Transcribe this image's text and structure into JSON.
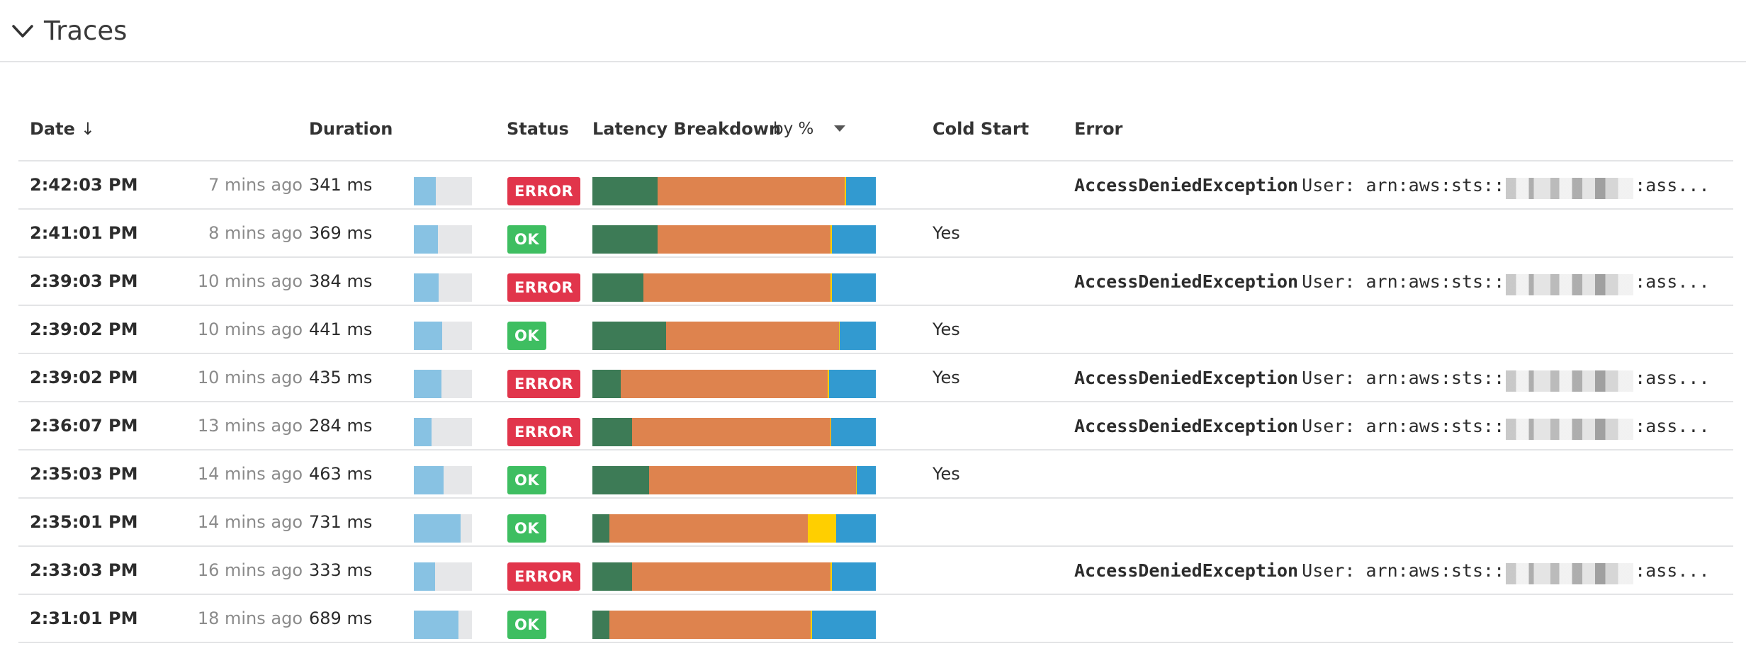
{
  "panel": {
    "title": "Traces"
  },
  "columns": {
    "date": "Date",
    "date_sort": "↓",
    "duration": "Duration",
    "status": "Status",
    "latency": "Latency Breakdown",
    "latency_mode": "by %",
    "cold_start": "Cold Start",
    "error": "Error"
  },
  "colors": {
    "segments": [
      "#3d7b56",
      "#de834e",
      "#ffcf00",
      "#329ad0"
    ],
    "error_badge": "#e1354b",
    "ok_badge": "#3ebe61",
    "duration_fill": "#88c2e3"
  },
  "rows": [
    {
      "time": "2:42:03 PM",
      "ago": "7 mins ago",
      "duration": "341 ms",
      "duration_level": 0.38,
      "status": "ERROR",
      "latency": [
        23,
        66,
        0.5,
        10.5
      ],
      "cold_start": "",
      "error_name": "AccessDeniedException",
      "error_prefix": "User: arn:aws:sts::",
      "error_suffix": ":ass..."
    },
    {
      "time": "2:41:01 PM",
      "ago": "8 mins ago",
      "duration": "369 ms",
      "duration_level": 0.41,
      "status": "OK",
      "latency": [
        23,
        61,
        0.6,
        15.4
      ],
      "cold_start": "Yes",
      "error_name": "",
      "error_prefix": "",
      "error_suffix": ""
    },
    {
      "time": "2:39:03 PM",
      "ago": "10 mins ago",
      "duration": "384 ms",
      "duration_level": 0.43,
      "status": "ERROR",
      "latency": [
        18,
        66,
        0.4,
        15.6
      ],
      "cold_start": "",
      "error_name": "AccessDeniedException",
      "error_prefix": "User: arn:aws:sts::",
      "error_suffix": ":ass..."
    },
    {
      "time": "2:39:02 PM",
      "ago": "10 mins ago",
      "duration": "441 ms",
      "duration_level": 0.49,
      "status": "OK",
      "latency": [
        26,
        61,
        0.3,
        12.7
      ],
      "cold_start": "Yes",
      "error_name": "",
      "error_prefix": "",
      "error_suffix": ""
    },
    {
      "time": "2:39:02 PM",
      "ago": "10 mins ago",
      "duration": "435 ms",
      "duration_level": 0.48,
      "status": "ERROR",
      "latency": [
        10,
        73,
        0.6,
        16.4
      ],
      "cold_start": "Yes",
      "error_name": "AccessDeniedException",
      "error_prefix": "User: arn:aws:sts::",
      "error_suffix": ":ass..."
    },
    {
      "time": "2:36:07 PM",
      "ago": "13 mins ago",
      "duration": "284 ms",
      "duration_level": 0.31,
      "status": "ERROR",
      "latency": [
        14,
        70,
        0.3,
        15.7
      ],
      "cold_start": "",
      "error_name": "AccessDeniedException",
      "error_prefix": "User: arn:aws:sts::",
      "error_suffix": ":ass..."
    },
    {
      "time": "2:35:03 PM",
      "ago": "14 mins ago",
      "duration": "463 ms",
      "duration_level": 0.51,
      "status": "OK",
      "latency": [
        20,
        73,
        0.3,
        6.7
      ],
      "cold_start": "Yes",
      "error_name": "",
      "error_prefix": "",
      "error_suffix": ""
    },
    {
      "time": "2:35:01 PM",
      "ago": "14 mins ago",
      "duration": "731 ms",
      "duration_level": 0.81,
      "status": "OK",
      "latency": [
        6,
        70,
        10,
        14
      ],
      "cold_start": "",
      "error_name": "",
      "error_prefix": "",
      "error_suffix": ""
    },
    {
      "time": "2:33:03 PM",
      "ago": "16 mins ago",
      "duration": "333 ms",
      "duration_level": 0.37,
      "status": "ERROR",
      "latency": [
        14,
        70,
        0.5,
        15.5
      ],
      "cold_start": "",
      "error_name": "AccessDeniedException",
      "error_prefix": "User: arn:aws:sts::",
      "error_suffix": ":ass..."
    },
    {
      "time": "2:31:01 PM",
      "ago": "18 mins ago",
      "duration": "689 ms",
      "duration_level": 0.77,
      "status": "OK",
      "latency": [
        6,
        71,
        0.5,
        22.5
      ],
      "cold_start": "",
      "error_name": "",
      "error_prefix": "",
      "error_suffix": ""
    }
  ]
}
